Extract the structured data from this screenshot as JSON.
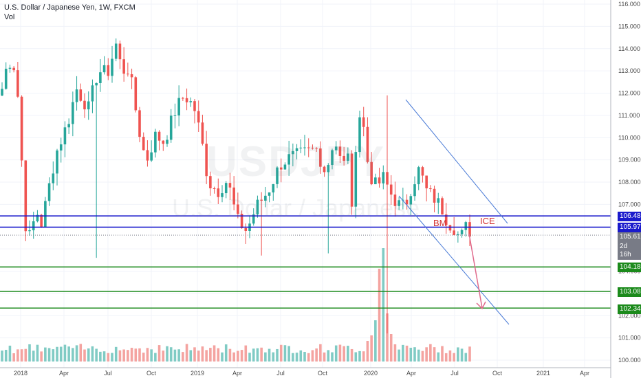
{
  "header": {
    "title": "U.S. Dollar / Japanese Yen, 1W, FXCM",
    "sub": "Vol"
  },
  "watermark": {
    "symbol": "USDJPY",
    "name": "U.S. Dollar / Japanese"
  },
  "chart_data": {
    "type": "candlestick",
    "x_ticks": [
      "2018",
      "Apr",
      "Jul",
      "Oct",
      "2019",
      "Apr",
      "Jul",
      "Oct",
      "2020",
      "Apr",
      "Jul",
      "Oct",
      "2021",
      "Apr"
    ],
    "y_ticks": [
      "116.000",
      "115.000",
      "114.000",
      "113.000",
      "112.000",
      "111.000",
      "110.000",
      "109.000",
      "108.000",
      "107.000",
      "106.000",
      "105.000",
      "104.000",
      "103.000",
      "102.000",
      "101.000",
      "100.000"
    ],
    "ylim": [
      99.9,
      116.1
    ],
    "price_levels": [
      {
        "value": "106.481",
        "color": "#1a1acc"
      },
      {
        "value": "105.975",
        "color": "#1a1acc"
      },
      {
        "value": "105.619",
        "color": "#787b86"
      },
      {
        "value": "104.187",
        "color": "#1b8a1b"
      },
      {
        "value": "103.089",
        "color": "#1b8a1b"
      },
      {
        "value": "102.340",
        "color": "#1b8a1b"
      }
    ],
    "countdown": "2d 16h",
    "annotations": [
      "BM",
      "ICE"
    ],
    "colors": {
      "up": "#26a69a",
      "down": "#ef5350",
      "up_vol": "#80cbc4",
      "down_vol": "#f4a3a0",
      "channel": "#4a7bd6",
      "arrow": "#e06a8c"
    }
  }
}
